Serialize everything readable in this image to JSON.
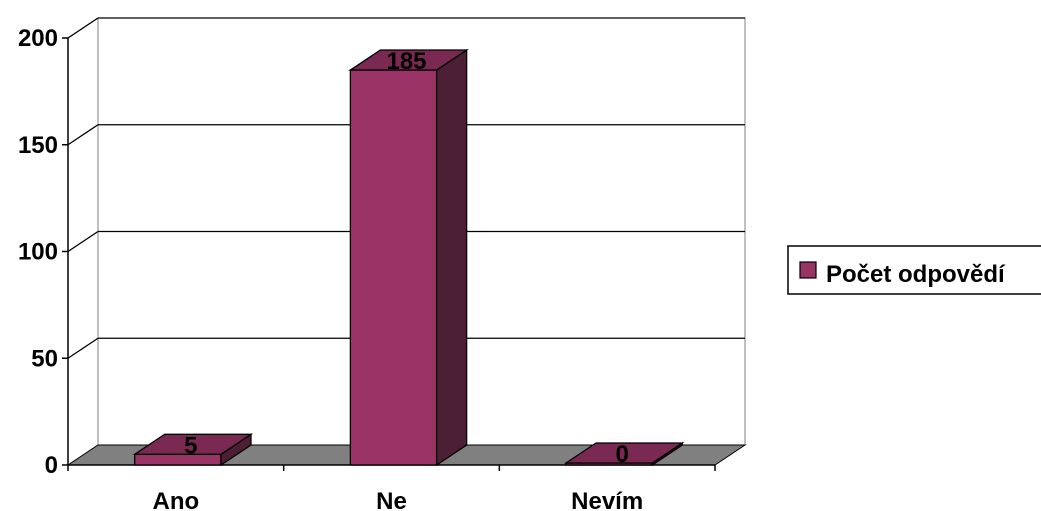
{
  "chart_data": {
    "type": "bar",
    "style": "3d-column",
    "categories": [
      "Ano",
      "Ne",
      "Nevím"
    ],
    "series": [
      {
        "name": "Počet odpovědí",
        "values": [
          5,
          185,
          0
        ]
      }
    ],
    "data_labels": [
      "5",
      "185",
      "0"
    ],
    "ylim": [
      0,
      200
    ],
    "y_ticks": [
      0,
      50,
      100,
      150,
      200
    ],
    "y_tick_labels": [
      "0",
      "50",
      "100",
      "150",
      "200"
    ],
    "grid": true,
    "legend_position": "right",
    "legend_label": "Počet odpovědí",
    "colors": {
      "bar_front": "#993366",
      "bar_top": "#7a2a52",
      "bar_side": "#4d1f37",
      "floor": "#808080",
      "gridline": "#000000",
      "back_wall": "#ffffff"
    }
  }
}
